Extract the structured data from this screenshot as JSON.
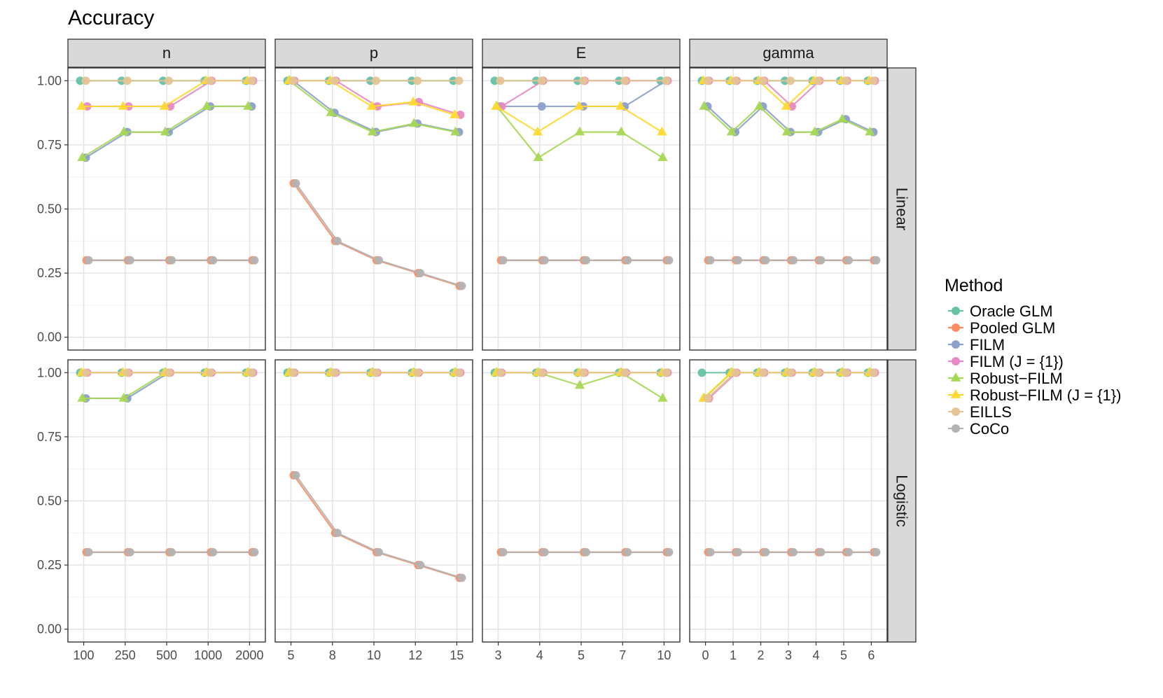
{
  "chart_data": {
    "type": "line",
    "title": "Accuracy",
    "ylim": [
      0,
      1.05
    ],
    "y_ticks": [
      0.0,
      0.25,
      0.5,
      0.75,
      1.0
    ],
    "y_tick_labels": [
      "0.00",
      "0.25",
      "0.50",
      "0.75",
      "1.00"
    ],
    "legend": {
      "title": "Method",
      "placement": "right",
      "entries": [
        {
          "name": "Oracle GLM",
          "color": "#66c2a5",
          "shape": "circle"
        },
        {
          "name": "Pooled GLM",
          "color": "#fc8d62",
          "shape": "circle"
        },
        {
          "name": "FILM",
          "color": "#8da0cb",
          "shape": "circle"
        },
        {
          "name": "FILM (J = {1})",
          "color": "#e78ac3",
          "shape": "circle"
        },
        {
          "name": "Robust−FILM",
          "color": "#a6d854",
          "shape": "triangle"
        },
        {
          "name": "Robust−FILM (J = {1})",
          "color": "#ffd92f",
          "shape": "triangle"
        },
        {
          "name": "EILLS",
          "color": "#e5c494",
          "shape": "circle"
        },
        {
          "name": "CoCo",
          "color": "#b3b3b3",
          "shape": "circle"
        }
      ]
    },
    "columns": [
      {
        "label": "n",
        "x_labels": [
          "100",
          "250",
          "500",
          "1000",
          "2000"
        ]
      },
      {
        "label": "p",
        "x_labels": [
          "5",
          "8",
          "10",
          "12",
          "15"
        ]
      },
      {
        "label": "E",
        "x_labels": [
          "3",
          "4",
          "5",
          "7",
          "10"
        ]
      },
      {
        "label": "gamma",
        "x_labels": [
          "0",
          "1",
          "2",
          "3",
          "4",
          "5",
          "6"
        ]
      }
    ],
    "rows": [
      "Linear",
      "Logistic"
    ],
    "panels": [
      {
        "row": "Linear",
        "col": "n",
        "series": [
          {
            "name": "Oracle GLM",
            "values": [
              1.0,
              1.0,
              1.0,
              1.0,
              1.0
            ]
          },
          {
            "name": "Pooled GLM",
            "values": [
              0.3,
              0.3,
              0.3,
              0.3,
              0.3
            ]
          },
          {
            "name": "FILM",
            "values": [
              0.7,
              0.8,
              0.8,
              0.9,
              0.9
            ]
          },
          {
            "name": "FILM (J = {1})",
            "values": [
              0.9,
              0.9,
              0.9,
              1.0,
              1.0
            ]
          },
          {
            "name": "Robust−FILM",
            "values": [
              0.7,
              0.8,
              0.8,
              0.9,
              0.9
            ]
          },
          {
            "name": "Robust−FILM (J = {1})",
            "values": [
              0.9,
              0.9,
              0.9,
              1.0,
              1.0
            ]
          },
          {
            "name": "EILLS",
            "values": [
              1.0,
              1.0,
              1.0,
              1.0,
              1.0
            ]
          },
          {
            "name": "CoCo",
            "values": [
              0.3,
              0.3,
              0.3,
              0.3,
              0.3
            ]
          }
        ]
      },
      {
        "row": "Linear",
        "col": "p",
        "series": [
          {
            "name": "Oracle GLM",
            "values": [
              1.0,
              1.0,
              1.0,
              1.0,
              1.0
            ]
          },
          {
            "name": "Pooled GLM",
            "values": [
              0.6,
              0.375,
              0.3,
              0.25,
              0.2
            ]
          },
          {
            "name": "FILM",
            "values": [
              1.0,
              0.875,
              0.8,
              0.833,
              0.8
            ]
          },
          {
            "name": "FILM (J = {1})",
            "values": [
              1.0,
              1.0,
              0.9,
              0.917,
              0.867
            ]
          },
          {
            "name": "Robust−FILM",
            "values": [
              1.0,
              0.875,
              0.8,
              0.833,
              0.8
            ]
          },
          {
            "name": "Robust−FILM (J = {1})",
            "values": [
              1.0,
              1.0,
              0.9,
              0.917,
              0.867
            ]
          },
          {
            "name": "EILLS",
            "values": [
              1.0,
              1.0,
              1.0,
              1.0,
              1.0
            ]
          },
          {
            "name": "CoCo",
            "values": [
              0.6,
              0.375,
              0.3,
              0.25,
              0.2
            ]
          }
        ]
      },
      {
        "row": "Linear",
        "col": "E",
        "series": [
          {
            "name": "Oracle GLM",
            "values": [
              1.0,
              1.0,
              1.0,
              1.0,
              1.0
            ]
          },
          {
            "name": "Pooled GLM",
            "values": [
              0.3,
              0.3,
              0.3,
              0.3,
              0.3
            ]
          },
          {
            "name": "FILM",
            "values": [
              0.9,
              0.9,
              0.9,
              0.9,
              1.0
            ]
          },
          {
            "name": "FILM (J = {1})",
            "values": [
              0.9,
              1.0,
              1.0,
              1.0,
              1.0
            ]
          },
          {
            "name": "Robust−FILM",
            "values": [
              0.9,
              0.7,
              0.8,
              0.8,
              0.7
            ]
          },
          {
            "name": "Robust−FILM (J = {1})",
            "values": [
              0.9,
              0.8,
              0.9,
              0.9,
              0.8
            ]
          },
          {
            "name": "EILLS",
            "values": [
              1.0,
              1.0,
              1.0,
              1.0,
              1.0
            ]
          },
          {
            "name": "CoCo",
            "values": [
              0.3,
              0.3,
              0.3,
              0.3,
              0.3
            ]
          }
        ]
      },
      {
        "row": "Linear",
        "col": "gamma",
        "series": [
          {
            "name": "Oracle GLM",
            "values": [
              1.0,
              1.0,
              1.0,
              1.0,
              1.0,
              1.0,
              1.0
            ]
          },
          {
            "name": "Pooled GLM",
            "values": [
              0.3,
              0.3,
              0.3,
              0.3,
              0.3,
              0.3,
              0.3
            ]
          },
          {
            "name": "FILM",
            "values": [
              0.9,
              0.8,
              0.9,
              0.8,
              0.8,
              0.85,
              0.8
            ]
          },
          {
            "name": "FILM (J = {1})",
            "values": [
              1.0,
              1.0,
              1.0,
              0.9,
              1.0,
              1.0,
              1.0
            ]
          },
          {
            "name": "Robust−FILM",
            "values": [
              0.9,
              0.8,
              0.9,
              0.8,
              0.8,
              0.85,
              0.8
            ]
          },
          {
            "name": "Robust−FILM (J = {1})",
            "values": [
              1.0,
              1.0,
              1.0,
              0.9,
              1.0,
              1.0,
              1.0
            ]
          },
          {
            "name": "EILLS",
            "values": [
              1.0,
              1.0,
              1.0,
              1.0,
              1.0,
              1.0,
              1.0
            ]
          },
          {
            "name": "CoCo",
            "values": [
              0.3,
              0.3,
              0.3,
              0.3,
              0.3,
              0.3,
              0.3
            ]
          }
        ]
      },
      {
        "row": "Logistic",
        "col": "n",
        "series": [
          {
            "name": "Oracle GLM",
            "values": [
              1.0,
              1.0,
              1.0,
              1.0,
              1.0
            ]
          },
          {
            "name": "Pooled GLM",
            "values": [
              0.3,
              0.3,
              0.3,
              0.3,
              0.3
            ]
          },
          {
            "name": "FILM",
            "values": [
              0.9,
              0.9,
              1.0,
              1.0,
              1.0
            ]
          },
          {
            "name": "FILM (J = {1})",
            "values": [
              1.0,
              1.0,
              1.0,
              1.0,
              1.0
            ]
          },
          {
            "name": "Robust−FILM",
            "values": [
              0.9,
              0.9,
              1.0,
              1.0,
              1.0
            ]
          },
          {
            "name": "Robust−FILM (J = {1})",
            "values": [
              1.0,
              1.0,
              1.0,
              1.0,
              1.0
            ]
          },
          {
            "name": "EILLS",
            "values": [
              1.0,
              1.0,
              1.0,
              1.0,
              1.0
            ]
          },
          {
            "name": "CoCo",
            "values": [
              0.3,
              0.3,
              0.3,
              0.3,
              0.3
            ]
          }
        ]
      },
      {
        "row": "Logistic",
        "col": "p",
        "series": [
          {
            "name": "Oracle GLM",
            "values": [
              1.0,
              1.0,
              1.0,
              1.0,
              1.0
            ]
          },
          {
            "name": "Pooled GLM",
            "values": [
              0.6,
              0.375,
              0.3,
              0.25,
              0.2
            ]
          },
          {
            "name": "FILM",
            "values": [
              1.0,
              1.0,
              1.0,
              1.0,
              1.0
            ]
          },
          {
            "name": "FILM (J = {1})",
            "values": [
              1.0,
              1.0,
              1.0,
              1.0,
              1.0
            ]
          },
          {
            "name": "Robust−FILM",
            "values": [
              1.0,
              1.0,
              1.0,
              1.0,
              1.0
            ]
          },
          {
            "name": "Robust−FILM (J = {1})",
            "values": [
              1.0,
              1.0,
              1.0,
              1.0,
              1.0
            ]
          },
          {
            "name": "EILLS",
            "values": [
              1.0,
              1.0,
              1.0,
              1.0,
              1.0
            ]
          },
          {
            "name": "CoCo",
            "values": [
              0.6,
              0.375,
              0.3,
              0.25,
              0.2
            ]
          }
        ]
      },
      {
        "row": "Logistic",
        "col": "E",
        "series": [
          {
            "name": "Oracle GLM",
            "values": [
              1.0,
              1.0,
              1.0,
              1.0,
              1.0
            ]
          },
          {
            "name": "Pooled GLM",
            "values": [
              0.3,
              0.3,
              0.3,
              0.3,
              0.3
            ]
          },
          {
            "name": "FILM",
            "values": [
              1.0,
              1.0,
              1.0,
              1.0,
              1.0
            ]
          },
          {
            "name": "FILM (J = {1})",
            "values": [
              1.0,
              1.0,
              1.0,
              1.0,
              1.0
            ]
          },
          {
            "name": "Robust−FILM",
            "values": [
              1.0,
              1.0,
              0.95,
              1.0,
              0.9
            ]
          },
          {
            "name": "Robust−FILM (J = {1})",
            "values": [
              1.0,
              1.0,
              1.0,
              1.0,
              1.0
            ]
          },
          {
            "name": "EILLS",
            "values": [
              1.0,
              1.0,
              1.0,
              1.0,
              1.0
            ]
          },
          {
            "name": "CoCo",
            "values": [
              0.3,
              0.3,
              0.3,
              0.3,
              0.3
            ]
          }
        ]
      },
      {
        "row": "Logistic",
        "col": "gamma",
        "series": [
          {
            "name": "Oracle GLM",
            "values": [
              1.0,
              1.0,
              1.0,
              1.0,
              1.0,
              1.0,
              1.0
            ]
          },
          {
            "name": "Pooled GLM",
            "values": [
              0.3,
              0.3,
              0.3,
              0.3,
              0.3,
              0.3,
              0.3
            ]
          },
          {
            "name": "FILM",
            "values": [
              0.9,
              1.0,
              1.0,
              1.0,
              1.0,
              1.0,
              1.0
            ]
          },
          {
            "name": "FILM (J = {1})",
            "values": [
              0.9,
              1.0,
              1.0,
              1.0,
              1.0,
              1.0,
              1.0
            ]
          },
          {
            "name": "Robust−FILM",
            "values": [
              0.9,
              1.0,
              1.0,
              1.0,
              1.0,
              1.0,
              1.0
            ]
          },
          {
            "name": "Robust−FILM (J = {1})",
            "values": [
              0.9,
              1.0,
              1.0,
              1.0,
              1.0,
              1.0,
              1.0
            ]
          },
          {
            "name": "EILLS",
            "values": [
              0.9,
              1.0,
              1.0,
              1.0,
              1.0,
              1.0,
              1.0
            ]
          },
          {
            "name": "CoCo",
            "values": [
              0.3,
              0.3,
              0.3,
              0.3,
              0.3,
              0.3,
              0.3
            ]
          }
        ]
      }
    ]
  }
}
